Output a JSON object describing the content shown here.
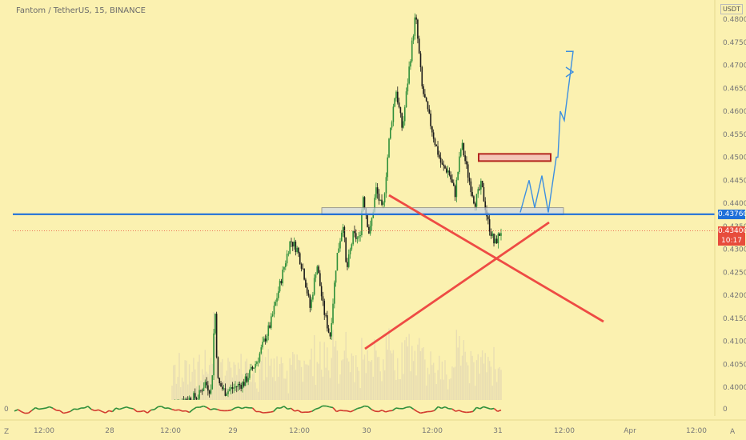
{
  "header": {
    "title": "Fantom / TetherUS, 15, BINANCE",
    "currency": "USDT"
  },
  "price_tags": {
    "hline": {
      "label": "0.43760",
      "color": "#1e6fd9"
    },
    "last": {
      "label": "0.43400",
      "countdown": "10:17",
      "color": "#e74c3c"
    }
  },
  "corners": {
    "left": "Z",
    "right": "A"
  },
  "chart_data": {
    "type": "candlestick",
    "title": "Fantom / TetherUS, 15, BINANCE",
    "y_unit": "USDT",
    "ylim": [
      0.3955,
      0.4835
    ],
    "y_ticks": [
      "0.48000",
      "0.47500",
      "0.47000",
      "0.46500",
      "0.46000",
      "0.45500",
      "0.45000",
      "0.44500",
      "0.44000",
      "0.43500",
      "0.43000",
      "0.42500",
      "0.42000",
      "0.41500",
      "0.41000",
      "0.40500",
      "0.40000"
    ],
    "x_ticks": [
      "12:00",
      "28",
      "12:00",
      "29",
      "12:00",
      "30",
      "12:00",
      "31",
      "12:00",
      "Apr",
      "12:00"
    ],
    "oscillator_zero_label": "0",
    "price_path": [
      {
        "t": 0.0,
        "p": 0.3965
      },
      {
        "t": 0.08,
        "p": 0.398
      },
      {
        "t": 0.1,
        "p": 0.401
      },
      {
        "t": 0.12,
        "p": 0.399
      },
      {
        "t": 0.13,
        "p": 0.418
      },
      {
        "t": 0.135,
        "p": 0.408
      },
      {
        "t": 0.14,
        "p": 0.401
      },
      {
        "t": 0.16,
        "p": 0.399
      },
      {
        "t": 0.22,
        "p": 0.401
      },
      {
        "t": 0.26,
        "p": 0.406
      },
      {
        "t": 0.3,
        "p": 0.414
      },
      {
        "t": 0.33,
        "p": 0.423
      },
      {
        "t": 0.36,
        "p": 0.432
      },
      {
        "t": 0.38,
        "p": 0.43
      },
      {
        "t": 0.4,
        "p": 0.425
      },
      {
        "t": 0.42,
        "p": 0.417
      },
      {
        "t": 0.44,
        "p": 0.427
      },
      {
        "t": 0.46,
        "p": 0.417
      },
      {
        "t": 0.48,
        "p": 0.411
      },
      {
        "t": 0.5,
        "p": 0.428
      },
      {
        "t": 0.52,
        "p": 0.436
      },
      {
        "t": 0.53,
        "p": 0.425
      },
      {
        "t": 0.55,
        "p": 0.433
      },
      {
        "t": 0.57,
        "p": 0.432
      },
      {
        "t": 0.58,
        "p": 0.442
      },
      {
        "t": 0.6,
        "p": 0.433
      },
      {
        "t": 0.62,
        "p": 0.443
      },
      {
        "t": 0.64,
        "p": 0.438
      },
      {
        "t": 0.66,
        "p": 0.454
      },
      {
        "t": 0.68,
        "p": 0.465
      },
      {
        "t": 0.7,
        "p": 0.456
      },
      {
        "t": 0.72,
        "p": 0.469
      },
      {
        "t": 0.74,
        "p": 0.481
      },
      {
        "t": 0.76,
        "p": 0.465
      },
      {
        "t": 0.78,
        "p": 0.459
      },
      {
        "t": 0.8,
        "p": 0.453
      },
      {
        "t": 0.82,
        "p": 0.448
      },
      {
        "t": 0.84,
        "p": 0.447
      },
      {
        "t": 0.86,
        "p": 0.442
      },
      {
        "t": 0.88,
        "p": 0.453
      },
      {
        "t": 0.9,
        "p": 0.446
      },
      {
        "t": 0.92,
        "p": 0.44
      },
      {
        "t": 0.94,
        "p": 0.444
      },
      {
        "t": 0.96,
        "p": 0.436
      },
      {
        "t": 0.98,
        "p": 0.431
      },
      {
        "t": 1.0,
        "p": 0.434
      }
    ],
    "annotations": {
      "horizontal_line": 0.4376,
      "last_price": 0.434,
      "support_zone": [
        0.437,
        0.4385
      ],
      "resistance_box": [
        0.4492,
        0.4502
      ],
      "projected_path": [
        0.438,
        0.445,
        0.439,
        0.446,
        0.438,
        0.45,
        0.45,
        0.46,
        0.458,
        0.473,
        0.473
      ]
    }
  }
}
